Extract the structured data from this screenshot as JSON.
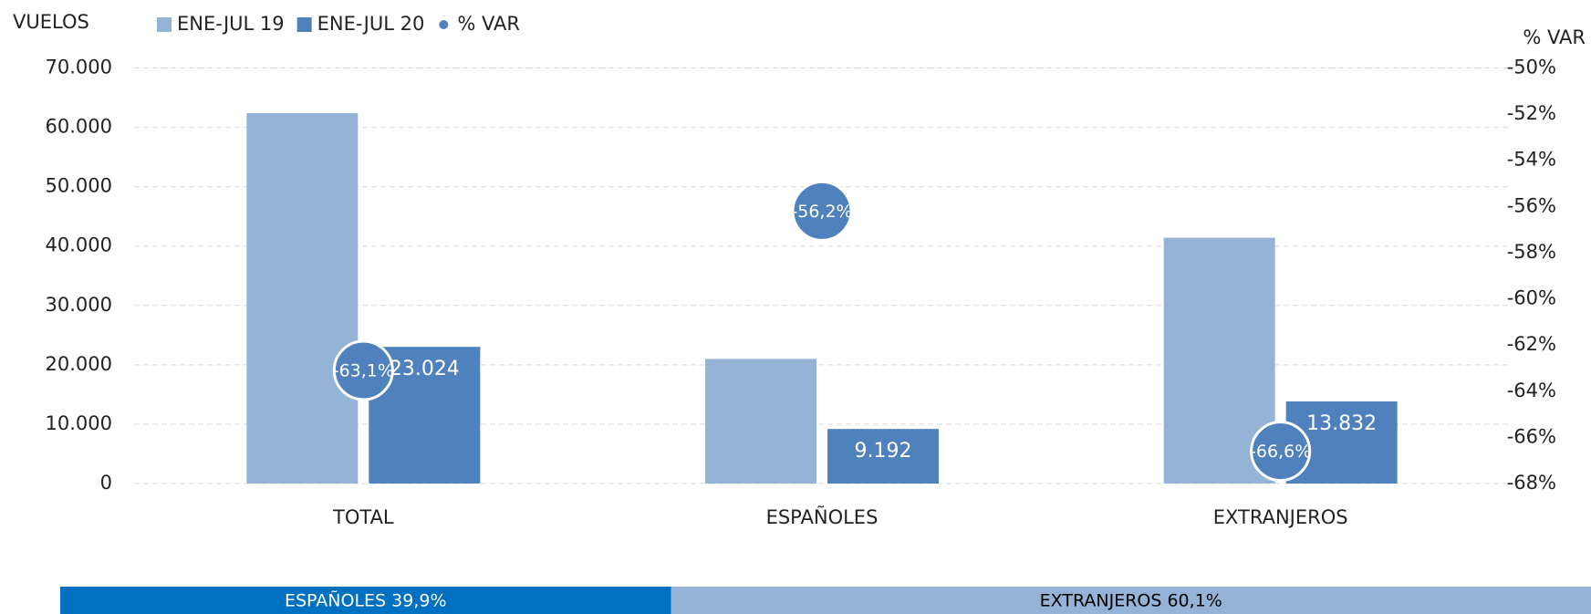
{
  "chart_data": [
    {
      "type": "bar_bubble",
      "y_label": "VUELOS",
      "y2_label": "% VAR",
      "categories": [
        "TOTAL",
        "ESPAÑOLES",
        "EXTRANJEROS"
      ],
      "series": [
        {
          "name": "ENE-JUL 19",
          "color": "#95b3d7",
          "values": [
            62400,
            21000,
            41400
          ]
        },
        {
          "name": "ENE-JUL 20",
          "color": "#4f81bd",
          "values": [
            23024,
            9192,
            13832
          ],
          "value_labels": [
            "23.024",
            "9.192",
            "13.832"
          ]
        },
        {
          "name": "% VAR",
          "color": "#4f81bd",
          "axis": "y2",
          "values": [
            -63.1,
            -56.2,
            -66.6
          ],
          "value_labels": [
            "-63,1%",
            "-56,2%",
            "-66,6%"
          ]
        }
      ],
      "ylim": [
        0,
        70000
      ],
      "yticks": [
        0,
        {
          "value": 10000,
          "label": "10.000"
        },
        {
          "value": 20000,
          "label": "20.000"
        },
        {
          "value": 30000,
          "label": "30.000"
        },
        {
          "value": 40000,
          "label": "40.000"
        },
        {
          "value": 50000,
          "label": "50.000"
        },
        {
          "value": 60000,
          "label": "60.000"
        },
        {
          "value": 70000,
          "label": "70.000"
        }
      ],
      "y2lim": [
        -68,
        -50
      ],
      "y2ticks": [
        {
          "value": -68,
          "label": "-68%"
        },
        {
          "value": -66,
          "label": "-66%"
        },
        {
          "value": -64,
          "label": "-64%"
        },
        {
          "value": -62,
          "label": "-62%"
        },
        {
          "value": -60,
          "label": "-60%"
        },
        {
          "value": -58,
          "label": "-58%"
        },
        {
          "value": -56,
          "label": "-56%"
        },
        {
          "value": -54,
          "label": "-54%"
        },
        {
          "value": -52,
          "label": "-52%"
        },
        {
          "value": -50,
          "label": "-50%"
        }
      ],
      "grid": true,
      "legend": "top-left"
    },
    {
      "type": "share_bar",
      "values": [
        39.9,
        60.1
      ],
      "value_labels": [
        "ESPAÑOLES 39,9%",
        "EXTRANJEROS 60,1%"
      ],
      "colors": [
        "#0070c0",
        "#95b3d7"
      ],
      "text_colors": [
        "#ffffff",
        "#000000"
      ]
    }
  ]
}
